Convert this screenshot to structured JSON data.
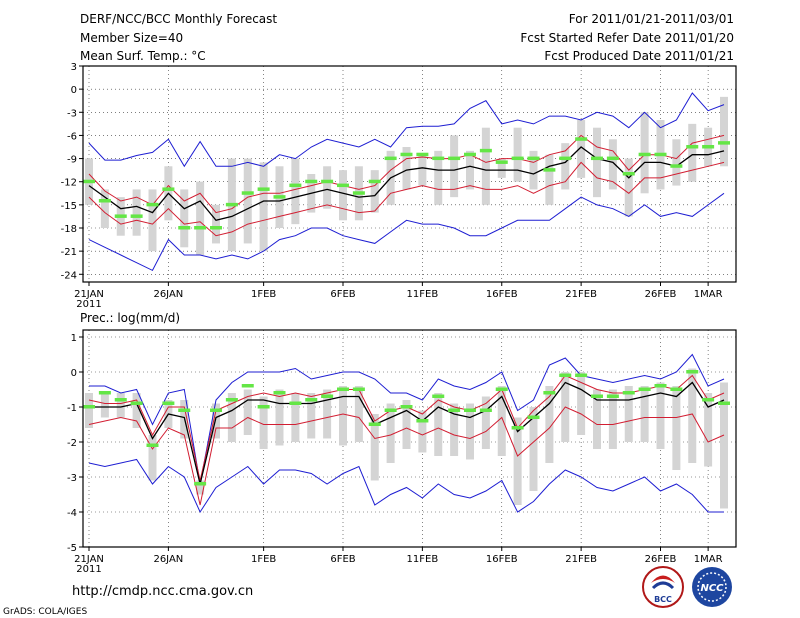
{
  "header": {
    "title": "DERF/NCC/BCC Monthly Forecast",
    "member_size": "Member Size=40",
    "variable": "Mean Surf. Temp.: °C",
    "period": "For 2011/01/21-2011/03/01",
    "refer_date": "Fcst Started Refer Date 2011/01/20",
    "produced_date": "Fcst Produced Date 2011/01/21"
  },
  "footer": {
    "url": "http://cmdp.ncc.cma.gov.cn",
    "credit": "GrADS: COLA/IGES",
    "logo_bcc": "BCC",
    "logo_ncc": "NCC"
  },
  "colors": {
    "box": "#d4d4d4",
    "median": "#64e646",
    "mean": "#000000",
    "inner": "#d21e32",
    "outer": "#1e1ed2",
    "grid": "#333333"
  },
  "chart_data": [
    {
      "type": "line",
      "title": "Mean Surf. Temp.: °C",
      "days": 40,
      "ylim": [
        -25,
        3
      ],
      "yticks": [
        3,
        0,
        -3,
        -6,
        -9,
        -12,
        -15,
        -18,
        -21,
        -24
      ],
      "xticks": [
        {
          "day": 0,
          "label": "21JAN",
          "sub": "2011"
        },
        {
          "day": 5,
          "label": "26JAN"
        },
        {
          "day": 11,
          "label": "1FEB"
        },
        {
          "day": 16,
          "label": "6FEB"
        },
        {
          "day": 21,
          "label": "11FEB"
        },
        {
          "day": 26,
          "label": "16FEB"
        },
        {
          "day": 31,
          "label": "21FEB"
        },
        {
          "day": 36,
          "label": "26FEB"
        },
        {
          "day": 39,
          "label": "1MAR"
        }
      ],
      "series": [
        {
          "name": "max",
          "color": "#1e1ed2",
          "values": [
            -7,
            -9.2,
            -9.2,
            -8.6,
            -8.2,
            -6.5,
            -10,
            -6.8,
            -10,
            -10,
            -9.5,
            -10,
            -8.5,
            -9,
            -7.5,
            -6.5,
            -7,
            -7.5,
            -6.5,
            -7.5,
            -5,
            -4.8,
            -4.8,
            -4.5,
            -2.5,
            -1.5,
            -4.5,
            -4,
            -4.5,
            -3.5,
            -3.5,
            -4,
            -3,
            -3.5,
            -5,
            -3,
            -5,
            -4,
            -0.5,
            -2.8,
            -2
          ]
        },
        {
          "name": "p75",
          "color": "#d21e32",
          "values": [
            -11,
            -13.2,
            -14.5,
            -14,
            -15,
            -12.5,
            -14.5,
            -13.5,
            -16,
            -15.5,
            -14,
            -13.5,
            -13.5,
            -13,
            -12.5,
            -12,
            -12.5,
            -13,
            -12.5,
            -10.5,
            -9,
            -8.8,
            -9,
            -9,
            -8.5,
            -9.5,
            -9,
            -9,
            -9.5,
            -8.5,
            -8,
            -6,
            -7.5,
            -8,
            -10.5,
            -8.5,
            -8.5,
            -9,
            -7,
            -6.5,
            -6
          ]
        },
        {
          "name": "mean",
          "color": "#000000",
          "values": [
            -12.5,
            -14,
            -15.5,
            -15.2,
            -16,
            -13.5,
            -15.5,
            -14.5,
            -17,
            -16.5,
            -15.5,
            -14.5,
            -14.5,
            -14,
            -13.5,
            -13,
            -13.5,
            -14,
            -13.8,
            -11.5,
            -10.5,
            -10.2,
            -10.5,
            -10.5,
            -10,
            -10.5,
            -10.5,
            -10.5,
            -11,
            -10,
            -9.5,
            -7.5,
            -9,
            -9.5,
            -11.5,
            -9.5,
            -9.5,
            -10,
            -8.5,
            -8.5,
            -8
          ]
        },
        {
          "name": "p25",
          "color": "#d21e32",
          "values": [
            -14,
            -16,
            -17.5,
            -17,
            -17.5,
            -15.5,
            -17.5,
            -17.2,
            -19,
            -18.5,
            -17.5,
            -17,
            -16.5,
            -16,
            -15.5,
            -15,
            -15.5,
            -16,
            -15.8,
            -13.5,
            -13,
            -12.5,
            -13,
            -13,
            -12.5,
            -13,
            -13,
            -12.5,
            -13.5,
            -12.5,
            -12,
            -9.5,
            -11.5,
            -12,
            -13.5,
            -11.5,
            -11.5,
            -11,
            -10.5,
            -10,
            -9.5
          ]
        },
        {
          "name": "min",
          "color": "#1e1ed2",
          "values": [
            -19.5,
            -20.5,
            -21.5,
            -22.5,
            -23.5,
            -19.5,
            -21.5,
            -21.5,
            -22,
            -21.5,
            -22,
            -21,
            -19.5,
            -19,
            -18,
            -18,
            -19,
            -19.5,
            -20,
            -18.5,
            -17,
            -17.5,
            -17.5,
            -18,
            -19,
            -19,
            -18,
            -17,
            -17,
            -17,
            -15.5,
            -14,
            -15,
            -15.5,
            -16.5,
            -15,
            -16.5,
            -16,
            -16.5,
            -15,
            -13.5
          ]
        },
        {
          "name": "median",
          "color": "#64e646",
          "values": [
            -12,
            -14.5,
            -16.5,
            -16.5,
            -15,
            -13,
            -18,
            -18,
            -18,
            -15,
            -13.5,
            -13,
            -14,
            -12.5,
            -12,
            -12,
            -12.5,
            -13.5,
            -12,
            -9,
            -8.5,
            -8.5,
            -9,
            -9,
            -8.5,
            -8,
            -9.5,
            -9,
            -9,
            -10.5,
            -9,
            -6.5,
            -9,
            -9,
            -11,
            -8.5,
            -8.5,
            -10,
            -7.5,
            -7.5,
            -7
          ]
        },
        {
          "name": "box_high",
          "color": "#d4d4d4",
          "values": [
            -9,
            -13,
            -14,
            -13,
            -13,
            -10,
            -13,
            -12,
            -15,
            -9,
            -9,
            -9.5,
            -10,
            -9,
            -11,
            -10,
            -10.5,
            -10,
            -10.5,
            -8,
            -7.5,
            -8.5,
            -8,
            -6,
            -8,
            -5,
            -9,
            -5,
            -8,
            -8.5,
            -7,
            -4,
            -5,
            -6.5,
            -9,
            -3,
            -4,
            -6.5,
            -4.5,
            -5,
            -1
          ]
        },
        {
          "name": "box_low",
          "color": "#d4d4d4",
          "values": [
            -15,
            -18,
            -19,
            -19,
            -21,
            -17,
            -20.5,
            -21.5,
            -20,
            -21,
            -20,
            -21,
            -18,
            -17.5,
            -16,
            -15.5,
            -17,
            -17,
            -16,
            -15,
            -13,
            -12.5,
            -15,
            -14,
            -13,
            -15,
            -11.5,
            -12,
            -13,
            -15,
            -13,
            -11.5,
            -14,
            -13,
            -16.5,
            -13.5,
            -13,
            -12.5,
            -12,
            -10,
            -10
          ]
        }
      ]
    },
    {
      "type": "line",
      "title": "Prec.: log(mm/d)",
      "days": 40,
      "ylim": [
        -5,
        1.2
      ],
      "yticks": [
        1,
        0,
        -1,
        -2,
        -3,
        -4,
        -5
      ],
      "xticks": [
        {
          "day": 0,
          "label": "21JAN",
          "sub": "2011"
        },
        {
          "day": 5,
          "label": "26JAN"
        },
        {
          "day": 11,
          "label": "1FEB"
        },
        {
          "day": 16,
          "label": "6FEB"
        },
        {
          "day": 21,
          "label": "11FEB"
        },
        {
          "day": 26,
          "label": "16FEB"
        },
        {
          "day": 31,
          "label": "21FEB"
        },
        {
          "day": 36,
          "label": "26FEB"
        },
        {
          "day": 39,
          "label": "1MAR"
        }
      ],
      "series": [
        {
          "name": "max",
          "color": "#1e1ed2",
          "values": [
            -0.4,
            -0.4,
            -0.6,
            -0.5,
            -1.5,
            -0.6,
            -0.5,
            -3.2,
            -0.8,
            -0.3,
            0,
            0,
            0,
            0.1,
            -0.2,
            -0.1,
            0,
            0,
            -0.2,
            -0.6,
            -0.6,
            -0.8,
            -0.2,
            -0.4,
            -0.5,
            -0.3,
            0,
            -1.1,
            -0.8,
            0.2,
            0.4,
            -0.1,
            -0.2,
            -0.3,
            -0.2,
            -0.1,
            -0.2,
            0,
            0.5,
            -0.4,
            -0.2
          ]
        },
        {
          "name": "p75",
          "color": "#d21e32",
          "values": [
            -0.8,
            -0.9,
            -0.9,
            -0.8,
            -1.8,
            -1,
            -1,
            -3.1,
            -1.1,
            -0.9,
            -0.7,
            -0.6,
            -0.7,
            -0.6,
            -0.7,
            -0.6,
            -0.5,
            -0.5,
            -1.4,
            -1.1,
            -1.0,
            -1.2,
            -0.8,
            -1,
            -1.1,
            -0.9,
            -0.5,
            -1.6,
            -1.1,
            -0.7,
            -0.1,
            -0.3,
            -0.5,
            -0.6,
            -0.6,
            -0.5,
            -0.4,
            -0.5,
            -0.1,
            -0.8,
            -0.6
          ]
        },
        {
          "name": "mean",
          "color": "#000000",
          "values": [
            -1,
            -1,
            -1,
            -0.9,
            -1.9,
            -1.2,
            -1.3,
            -3.2,
            -1.3,
            -1.1,
            -0.8,
            -0.8,
            -0.9,
            -0.9,
            -0.9,
            -0.8,
            -0.7,
            -0.7,
            -1.5,
            -1.3,
            -1.1,
            -1.4,
            -1.0,
            -1.2,
            -1.3,
            -1.1,
            -0.7,
            -1.7,
            -1.3,
            -0.9,
            -0.3,
            -0.5,
            -0.8,
            -0.8,
            -0.8,
            -0.7,
            -0.6,
            -0.7,
            -0.3,
            -1,
            -0.8
          ]
        },
        {
          "name": "p25",
          "color": "#d21e32",
          "values": [
            -1.5,
            -1.4,
            -1.3,
            -1.4,
            -2.2,
            -1.6,
            -1.8,
            -3.8,
            -1.6,
            -1.6,
            -1.3,
            -1.5,
            -1.5,
            -1.5,
            -1.4,
            -1.3,
            -1.2,
            -1.3,
            -1.9,
            -1.8,
            -1.6,
            -1.8,
            -1.6,
            -1.8,
            -1.9,
            -1.7,
            -1.3,
            -2.4,
            -2,
            -1.6,
            -1.0,
            -1.2,
            -1.5,
            -1.5,
            -1.4,
            -1.3,
            -1.3,
            -1.3,
            -1.2,
            -2,
            -1.8
          ]
        },
        {
          "name": "min",
          "color": "#1e1ed2",
          "values": [
            -2.6,
            -2.7,
            -2.6,
            -2.5,
            -3.2,
            -2.7,
            -3,
            -4,
            -3.3,
            -3,
            -2.7,
            -3.2,
            -2.8,
            -2.8,
            -2.9,
            -3.2,
            -2.9,
            -2.7,
            -3.8,
            -3.5,
            -3.3,
            -3.6,
            -3.2,
            -3.5,
            -3.6,
            -3.4,
            -3.1,
            -4,
            -3.7,
            -3.2,
            -2.8,
            -3,
            -3.3,
            -3.4,
            -3.2,
            -3,
            -3.4,
            -3.2,
            -3.5,
            -4,
            -4
          ]
        },
        {
          "name": "median",
          "color": "#64e646",
          "values": [
            -1,
            -0.6,
            -0.8,
            -0.9,
            -2.1,
            -0.9,
            -1.1,
            -3.2,
            -1.1,
            -0.8,
            -0.4,
            -1,
            -0.6,
            -0.9,
            -0.8,
            -0.7,
            -0.5,
            -0.5,
            -1.5,
            -1.1,
            -1.0,
            -1.4,
            -0.7,
            -1.1,
            -1.1,
            -1.1,
            -0.5,
            -1.6,
            -1.3,
            -0.6,
            -0.1,
            -0.1,
            -0.7,
            -0.7,
            -0.6,
            -0.5,
            -0.4,
            -0.5,
            0,
            -0.8,
            -0.9
          ]
        },
        {
          "name": "box_high",
          "color": "#d4d4d4",
          "values": [
            -0.6,
            -0.6,
            -0.6,
            -0.6,
            -1.8,
            -0.8,
            -0.8,
            -3.1,
            -0.9,
            -0.6,
            -0.5,
            -0.7,
            -0.5,
            -0.6,
            -0.6,
            -0.5,
            -0.4,
            -0.4,
            -1.2,
            -0.9,
            -0.8,
            -1.1,
            -0.6,
            -0.9,
            -0.9,
            -0.7,
            -0.4,
            -1.3,
            -1,
            -0.4,
            0,
            0,
            -0.5,
            -0.5,
            -0.4,
            -0.4,
            -0.3,
            -0.4,
            0.1,
            -0.6,
            -0.3
          ]
        },
        {
          "name": "box_low",
          "color": "#d4d4d4",
          "values": [
            -1.6,
            -1.3,
            -1.3,
            -1.6,
            -3.1,
            -1.6,
            -1.9,
            -3.5,
            -1.9,
            -2,
            -1.8,
            -2.2,
            -2.1,
            -2,
            -1.9,
            -1.9,
            -2.1,
            -2,
            -3.1,
            -2.6,
            -2.2,
            -2.3,
            -2.4,
            -2.4,
            -2.5,
            -2.2,
            -2.4,
            -3.8,
            -3.4,
            -2.6,
            -2,
            -1.8,
            -2.2,
            -2.2,
            -2,
            -2,
            -2.2,
            -2.8,
            -2.6,
            -2.7,
            -3.9
          ]
        }
      ]
    }
  ]
}
